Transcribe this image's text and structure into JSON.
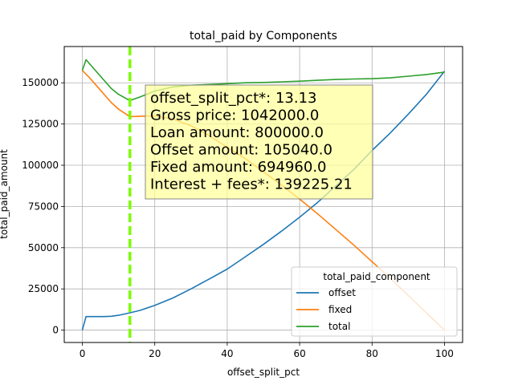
{
  "chart_data": {
    "type": "line",
    "title": "total_paid by Components",
    "xlabel": "offset_split_pct",
    "ylabel": "total_paid_amount",
    "xlim": [
      -5,
      105
    ],
    "ylim": [
      -7500,
      172000
    ],
    "xticks": [
      0,
      20,
      40,
      60,
      80,
      100
    ],
    "yticks": [
      0,
      25000,
      50000,
      75000,
      100000,
      125000,
      150000
    ],
    "grid": true,
    "legend": {
      "title": "total_paid_component",
      "placement": "lower-right"
    },
    "series": [
      {
        "name": "offset",
        "color": "#1f77b4",
        "x": [
          0,
          1,
          2,
          4,
          6,
          8,
          10,
          13.13,
          16,
          20,
          25,
          30,
          35,
          40,
          45,
          50,
          55,
          60,
          65,
          70,
          75,
          80,
          85,
          90,
          95,
          100
        ],
        "y": [
          0,
          8200,
          8200,
          8200,
          8200,
          8400,
          9000,
          10500,
          12000,
          15000,
          19500,
          25000,
          31000,
          37000,
          44500,
          52000,
          60000,
          68500,
          77500,
          87500,
          97500,
          109000,
          119500,
          131000,
          143000,
          157000
        ]
      },
      {
        "name": "fixed",
        "color": "#ff7f0e",
        "x": [
          0,
          2,
          4,
          6,
          8,
          10,
          13.13,
          20,
          25,
          30,
          35,
          40,
          45,
          50,
          55,
          60,
          65,
          70,
          75,
          80,
          85,
          90,
          95,
          100
        ],
        "y": [
          157500,
          153000,
          148000,
          143000,
          138000,
          134000,
          129500,
          130000,
          128000,
          124000,
          118000,
          111000,
          104000,
          96000,
          88000,
          79500,
          70500,
          61000,
          51500,
          41500,
          31500,
          21000,
          10500,
          0
        ]
      },
      {
        "name": "total",
        "color": "#2ca02c",
        "x": [
          0,
          1,
          2,
          4,
          6,
          8,
          10,
          13.13,
          16,
          20,
          25,
          30,
          35,
          40,
          45,
          50,
          55,
          60,
          65,
          70,
          75,
          80,
          85,
          90,
          95,
          100
        ],
        "y": [
          157500,
          164000,
          161500,
          156500,
          151500,
          146500,
          143000,
          139200,
          141500,
          145000,
          147500,
          148500,
          149000,
          149500,
          150000,
          150200,
          150600,
          151000,
          151500,
          152000,
          152300,
          152500,
          153000,
          154000,
          155000,
          156500
        ]
      }
    ],
    "reference_line": {
      "x": 13.13,
      "color": "#7cfc00",
      "style": "dashed"
    },
    "annotation": {
      "lines": [
        "offset_split_pct*: 13.13",
        "Gross price: 1042000.0",
        "Loan amount: 800000.0",
        "Offset amount: 105040.0",
        "Fixed amount: 694960.0",
        "Interest + fees*: 139225.21"
      ],
      "background": "#ffff99"
    }
  }
}
